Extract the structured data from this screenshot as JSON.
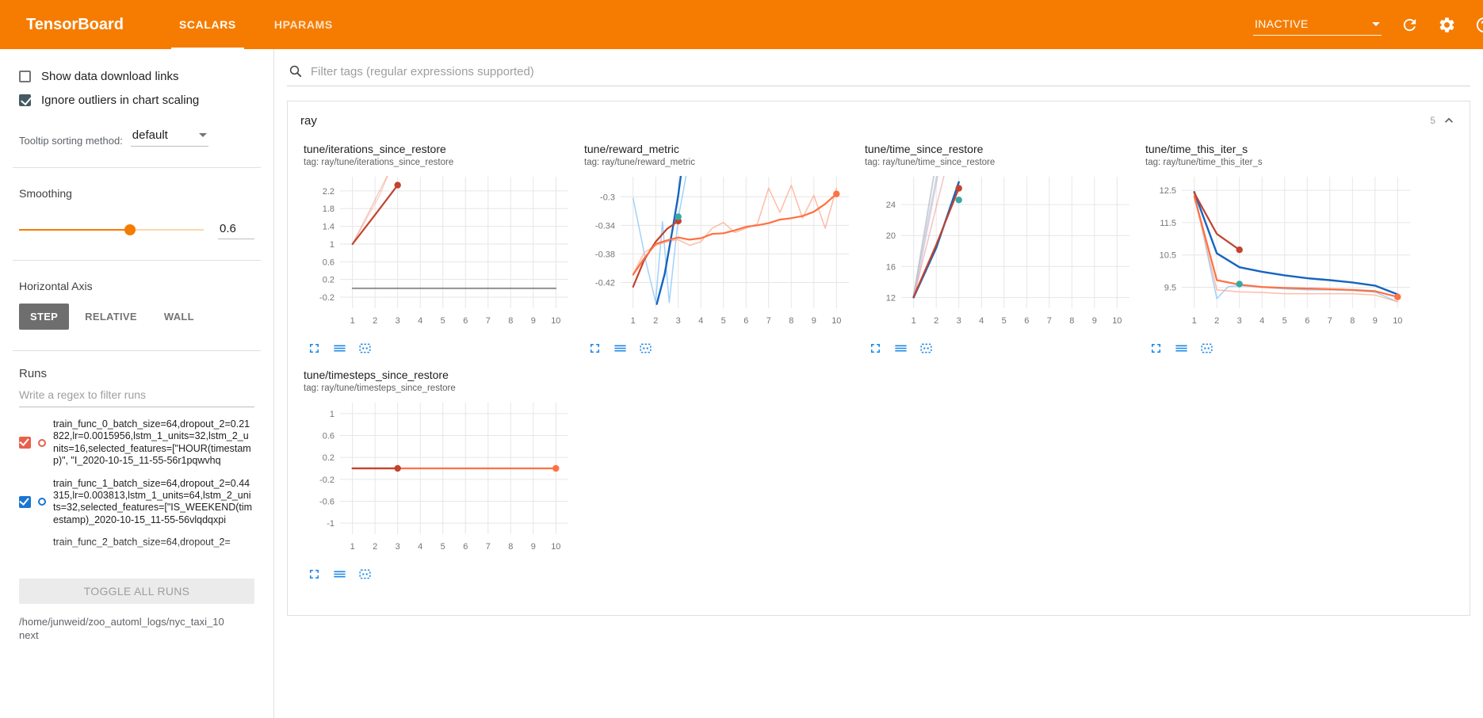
{
  "header": {
    "logo": "TensorBoard",
    "tabs": [
      {
        "label": "SCALARS",
        "active": true
      },
      {
        "label": "HPARAMS",
        "active": false
      }
    ],
    "status": "INACTIVE"
  },
  "icons": {
    "search": "magnifier",
    "dropdown_arrow": "triangle-down",
    "refresh": "circular-arrow",
    "settings": "gear",
    "help": "question-circle",
    "collapse": "chevron-up",
    "chart_footer": [
      "expand-chart",
      "data-lines",
      "pin-selector"
    ]
  },
  "colors": {
    "header_orange": "#f57c00",
    "icon_blue": "#1e88e5",
    "accent_dark_check": "#455a64"
  },
  "sidebar": {
    "checkboxes": [
      {
        "label": "Show data download links",
        "checked": false
      },
      {
        "label": "Ignore outliers in chart scaling",
        "checked": true
      }
    ],
    "tooltip_sorting": {
      "label": "Tooltip sorting method:",
      "value": "default"
    },
    "smoothing": {
      "label": "Smoothing",
      "value": "0.6",
      "percent": 60
    },
    "horizontal_axis": {
      "label": "Horizontal Axis",
      "options": [
        {
          "label": "STEP",
          "active": true
        },
        {
          "label": "RELATIVE",
          "active": false
        },
        {
          "label": "WALL",
          "active": false
        }
      ]
    },
    "runs": {
      "label": "Runs",
      "filter_placeholder": "Write a regex to filter runs",
      "items": [
        {
          "text": "train_func_0_batch_size=64,dropout_2=0.21822,lr=0.0015956,lstm_1_units=32,lstm_2_units=16,selected_features=[\"HOUR(timestamp)\", \"I_2020-10-15_11-55-56r1pqwvhq",
          "checked": true,
          "color": "#e8604c",
          "clipped": false
        },
        {
          "text": "train_func_1_batch_size=64,dropout_2=0.44315,lr=0.003813,lstm_1_units=64,lstm_2_units=32,selected_features=[\"IS_WEEKEND(timestamp)_2020-10-15_11-55-56vlqdqxpi",
          "checked": true,
          "color": "#1976d2",
          "clipped": false
        },
        {
          "text": "train_func_2_batch_size=64,dropout_2=",
          "checked": true,
          "color": "#9e9e9e",
          "clipped": true
        }
      ],
      "toggle_all_label": "TOGGLE ALL RUNS",
      "log_path": "/home/junweid/zoo_automl_logs/nyc_taxi_10next"
    }
  },
  "main": {
    "filter_placeholder": "Filter tags (regular expressions supported)",
    "group": {
      "name": "ray",
      "count": "5"
    }
  },
  "chart_data": [
    {
      "type": "line",
      "title": "tune/iterations_since_restore",
      "tag": "tag: ray/tune/iterations_since_restore",
      "xlim": [
        0.45,
        10.55
      ],
      "x_ticks": [
        1,
        2,
        3,
        4,
        5,
        6,
        7,
        8,
        9,
        10
      ],
      "ylim": [
        -0.45,
        2.52
      ],
      "y_ticks": [
        -0.2,
        0.2,
        0.6,
        1,
        1.4,
        1.8,
        2.2
      ],
      "series": [
        {
          "name": "raw-red",
          "color": "#c2432f",
          "width": 1.5,
          "opacity": 0.25,
          "points": [
            [
              1,
              1
            ],
            [
              2,
              2
            ],
            [
              3,
              3
            ]
          ]
        },
        {
          "name": "raw-orange",
          "color": "#ff7043",
          "width": 1.5,
          "opacity": 0.3,
          "points": [
            [
              1,
              1
            ],
            [
              2.2,
              2.1
            ],
            [
              3.1,
              3.2
            ]
          ]
        },
        {
          "name": "flat-gray",
          "color": "#757575",
          "width": 1.8,
          "opacity": 0.85,
          "points": [
            [
              1,
              0
            ],
            [
              10,
              0
            ]
          ]
        },
        {
          "name": "smoothed-red",
          "color": "#c2432f",
          "width": 2.2,
          "opacity": 1,
          "points": [
            [
              1,
              1
            ],
            [
              2,
              1.66
            ],
            [
              3,
              2.33
            ]
          ],
          "dots": [
            [
              3,
              2.33
            ]
          ]
        }
      ]
    },
    {
      "type": "line",
      "title": "tune/reward_metric",
      "tag": "tag: ray/tune/reward_metric",
      "xlim": [
        0.45,
        10.55
      ],
      "x_ticks": [
        1,
        2,
        3,
        4,
        5,
        6,
        7,
        8,
        9,
        10
      ],
      "ylim": [
        -0.456,
        -0.272
      ],
      "y_ticks": [
        -0.42,
        -0.38,
        -0.34,
        -0.3
      ],
      "series": [
        {
          "name": "raw-lightblue",
          "color": "#90caf9",
          "width": 1.5,
          "opacity": 0.85,
          "points": [
            [
              1,
              -0.302
            ],
            [
              1.6,
              -0.395
            ],
            [
              2,
              -0.447
            ],
            [
              2.3,
              -0.335
            ],
            [
              2.6,
              -0.448
            ],
            [
              3,
              -0.33
            ],
            [
              3.35,
              -0.27
            ]
          ]
        },
        {
          "name": "raw-lightorange",
          "color": "#ffab91",
          "width": 1.5,
          "opacity": 0.8,
          "points": [
            [
              1,
              -0.408
            ],
            [
              1.5,
              -0.378
            ],
            [
              2,
              -0.368
            ],
            [
              2.5,
              -0.363
            ],
            [
              3,
              -0.36
            ],
            [
              3.5,
              -0.368
            ],
            [
              4,
              -0.363
            ],
            [
              4.5,
              -0.344
            ],
            [
              5,
              -0.336
            ],
            [
              5.5,
              -0.35
            ],
            [
              6,
              -0.344
            ],
            [
              6.5,
              -0.338
            ],
            [
              7,
              -0.288
            ],
            [
              7.5,
              -0.322
            ],
            [
              8,
              -0.284
            ],
            [
              8.5,
              -0.33
            ],
            [
              9,
              -0.298
            ],
            [
              9.5,
              -0.344
            ],
            [
              10,
              -0.288
            ]
          ]
        },
        {
          "name": "smoothed-blue",
          "color": "#1565c0",
          "width": 2.4,
          "opacity": 1,
          "points": [
            [
              2.05,
              -0.45
            ],
            [
              2.4,
              -0.408
            ],
            [
              2.75,
              -0.345
            ],
            [
              3,
              -0.298
            ],
            [
              3.3,
              -0.225
            ]
          ]
        },
        {
          "name": "smoothed-darkred",
          "color": "#c2432f",
          "width": 2.2,
          "opacity": 1,
          "points": [
            [
              1,
              -0.426
            ],
            [
              1.5,
              -0.388
            ],
            [
              2,
              -0.363
            ],
            [
              2.5,
              -0.345
            ],
            [
              3,
              -0.334
            ]
          ],
          "dots": [
            [
              3,
              -0.334
            ]
          ]
        },
        {
          "name": "smoothed-orange",
          "color": "#ff7043",
          "width": 2.2,
          "opacity": 1,
          "points": [
            [
              1,
              -0.409
            ],
            [
              1.5,
              -0.386
            ],
            [
              2,
              -0.366
            ],
            [
              2.5,
              -0.361
            ],
            [
              3,
              -0.357
            ],
            [
              3.5,
              -0.36
            ],
            [
              4,
              -0.358
            ],
            [
              4.5,
              -0.352
            ],
            [
              5,
              -0.351
            ],
            [
              5.5,
              -0.347
            ],
            [
              6,
              -0.342
            ],
            [
              6.5,
              -0.34
            ],
            [
              7,
              -0.337
            ],
            [
              7.5,
              -0.332
            ],
            [
              8,
              -0.33
            ],
            [
              8.5,
              -0.327
            ],
            [
              9,
              -0.321
            ],
            [
              9.5,
              -0.31
            ],
            [
              10,
              -0.296
            ]
          ],
          "dots": [
            [
              10,
              -0.296
            ]
          ]
        },
        {
          "name": "teal-marker",
          "color": "#3aa7a4",
          "dots": [
            [
              3,
              -0.328
            ]
          ]
        }
      ]
    },
    {
      "type": "line",
      "title": "tune/time_since_restore",
      "tag": "tag: ray/tune/time_since_restore",
      "xlim": [
        0.45,
        10.55
      ],
      "x_ticks": [
        1,
        2,
        3,
        4,
        5,
        6,
        7,
        8,
        9,
        10
      ],
      "ylim": [
        10.6,
        27.6
      ],
      "y_ticks": [
        12,
        16,
        20,
        24
      ],
      "series": [
        {
          "name": "raw-lavender",
          "color": "#b0a8c9",
          "width": 3,
          "opacity": 0.5,
          "points": [
            [
              1,
              12
            ],
            [
              2.05,
              27.8
            ]
          ]
        },
        {
          "name": "raw-gray",
          "color": "#b0bec5",
          "width": 2,
          "opacity": 0.7,
          "points": [
            [
              1,
              12.2
            ],
            [
              1.9,
              27.8
            ]
          ]
        },
        {
          "name": "raw-pink",
          "color": "#ef9a9a",
          "width": 1.5,
          "opacity": 0.6,
          "points": [
            [
              1,
              12
            ],
            [
              2.35,
              27.8
            ]
          ]
        },
        {
          "name": "smoothed-blue",
          "color": "#1565c0",
          "width": 2.4,
          "opacity": 1,
          "points": [
            [
              1,
              12
            ],
            [
              2,
              18.4
            ],
            [
              3,
              26.9
            ]
          ]
        },
        {
          "name": "smoothed-darkred",
          "color": "#c2432f",
          "width": 2.2,
          "opacity": 1,
          "points": [
            [
              1,
              12.1
            ],
            [
              2,
              18.8
            ],
            [
              3,
              26.1
            ]
          ],
          "dots": [
            [
              3,
              26.1
            ]
          ]
        },
        {
          "name": "teal-marker",
          "color": "#3aa7a4",
          "dots": [
            [
              3,
              24.6
            ]
          ]
        }
      ]
    },
    {
      "type": "line",
      "title": "tune/time_this_iter_s",
      "tag": "tag: ray/tune/time_this_iter_s",
      "xlim": [
        0.45,
        10.55
      ],
      "x_ticks": [
        1,
        2,
        3,
        4,
        5,
        6,
        7,
        8,
        9,
        10
      ],
      "ylim": [
        8.85,
        12.92
      ],
      "y_ticks": [
        9.5,
        10.5,
        11.5,
        12.5
      ],
      "series": [
        {
          "name": "raw-lightblue",
          "color": "#90caf9",
          "width": 1.5,
          "opacity": 0.85,
          "points": [
            [
              1,
              12.45
            ],
            [
              2,
              9.15
            ],
            [
              2.5,
              9.52
            ],
            [
              3,
              9.55
            ],
            [
              4,
              9.5
            ],
            [
              5,
              9.45
            ],
            [
              6,
              9.42
            ],
            [
              7,
              9.42
            ],
            [
              8,
              9.4
            ],
            [
              9,
              9.35
            ],
            [
              10,
              9.05
            ]
          ]
        },
        {
          "name": "raw-lightorange",
          "color": "#ffab91",
          "width": 1.5,
          "opacity": 0.8,
          "points": [
            [
              1,
              12.3
            ],
            [
              2,
              9.42
            ],
            [
              3,
              9.36
            ],
            [
              4,
              9.34
            ],
            [
              5,
              9.3
            ],
            [
              6,
              9.3
            ],
            [
              7,
              9.3
            ],
            [
              8,
              9.3
            ],
            [
              9,
              9.26
            ],
            [
              10,
              9.05
            ]
          ]
        },
        {
          "name": "smoothed-blue",
          "color": "#1565c0",
          "width": 2.4,
          "opacity": 1,
          "points": [
            [
              1,
              12.45
            ],
            [
              2,
              10.55
            ],
            [
              3,
              10.12
            ],
            [
              4,
              9.98
            ],
            [
              5,
              9.87
            ],
            [
              6,
              9.78
            ],
            [
              7,
              9.72
            ],
            [
              8,
              9.65
            ],
            [
              9,
              9.55
            ],
            [
              10,
              9.28
            ]
          ]
        },
        {
          "name": "smoothed-orange",
          "color": "#ff7043",
          "width": 2.2,
          "opacity": 1,
          "points": [
            [
              1,
              12.32
            ],
            [
              2,
              9.72
            ],
            [
              3,
              9.58
            ],
            [
              4,
              9.51
            ],
            [
              5,
              9.48
            ],
            [
              6,
              9.46
            ],
            [
              7,
              9.44
            ],
            [
              8,
              9.42
            ],
            [
              9,
              9.38
            ],
            [
              10,
              9.2
            ]
          ],
          "dots": [
            [
              10,
              9.2
            ]
          ]
        },
        {
          "name": "smoothed-darkred",
          "color": "#c2432f",
          "width": 2.2,
          "opacity": 1,
          "points": [
            [
              1,
              12.42
            ],
            [
              2,
              11.15
            ],
            [
              3,
              10.66
            ]
          ],
          "dots": [
            [
              3,
              10.66
            ]
          ]
        },
        {
          "name": "teal-marker",
          "color": "#3aa7a4",
          "dots": [
            [
              3,
              9.6
            ]
          ]
        }
      ]
    },
    {
      "type": "line",
      "title": "tune/timesteps_since_restore",
      "tag": "tag: ray/tune/timesteps_since_restore",
      "xlim": [
        0.45,
        10.55
      ],
      "x_ticks": [
        1,
        2,
        3,
        4,
        5,
        6,
        7,
        8,
        9,
        10
      ],
      "ylim": [
        -1.2,
        1.2
      ],
      "y_ticks": [
        -1,
        -0.6,
        -0.2,
        0.2,
        0.6,
        1
      ],
      "series": [
        {
          "name": "flat-gray",
          "color": "#757575",
          "width": 1.5,
          "opacity": 0.7,
          "points": [
            [
              1,
              0
            ],
            [
              10,
              0
            ]
          ]
        },
        {
          "name": "flat-orange",
          "color": "#ff7043",
          "width": 2.2,
          "opacity": 1,
          "points": [
            [
              1,
              0
            ],
            [
              10,
              0
            ]
          ],
          "dots": [
            [
              10,
              0
            ]
          ]
        },
        {
          "name": "flat-darkred",
          "color": "#c2432f",
          "width": 2.2,
          "opacity": 1,
          "points": [
            [
              1,
              0
            ],
            [
              3,
              0
            ]
          ],
          "dots": [
            [
              3,
              0
            ]
          ]
        }
      ]
    }
  ]
}
